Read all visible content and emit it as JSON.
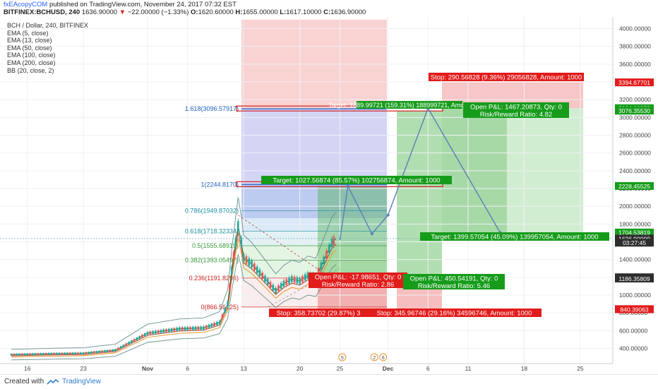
{
  "header": {
    "author": "fxEAcopyCOM",
    "published": "published on TradingView.com, November 24, 2017 07:32 EST",
    "symbol": "BITFINEX:BCHUSD, 240",
    "last": "1636.90000",
    "change": "−22.00000 (−1.33%)",
    "open_label": "O:",
    "open": "1620.60000",
    "high_label": "H:",
    "high": "1655.00000",
    "low_label": "L:",
    "low": "1617.10000",
    "close_label": "C:",
    "close": "1636.90000"
  },
  "legend": [
    "BCH / Dollar, 240, BITFINEX",
    "EMA (5, close)",
    "EMA (13, close)",
    "EMA (50, close)",
    "EMA (100, close)",
    "EMA (200, close)",
    "BB (20, close, 2)"
  ],
  "footer": {
    "created_with": "Created with",
    "brand": "TradingView"
  },
  "colors": {
    "up": "#26a69a",
    "down": "#ef5350",
    "red_label": "#e21b1b",
    "green_label": "#169c1b",
    "fib_blue": "#1e5fc0",
    "fib_green": "#3a9a3a",
    "fib_red": "#cc2222",
    "path": "#5b7fb8"
  },
  "chart_data": {
    "type": "candlestick",
    "title": "BCH / Dollar, 240, BITFINEX",
    "ylim": [
      300,
      4100
    ],
    "y_ticks": [
      400,
      600,
      800,
      1000,
      1200,
      1400,
      1600,
      1800,
      2000,
      2200,
      2400,
      2600,
      2800,
      3000,
      3200,
      3400,
      3600,
      3800,
      4000
    ],
    "x_ticks": [
      {
        "label": "16",
        "day": -15
      },
      {
        "label": "23",
        "day": -8
      },
      {
        "label": "Nov",
        "day": 0
      },
      {
        "label": "6",
        "day": 5
      },
      {
        "label": "13",
        "day": 12
      },
      {
        "label": "20",
        "day": 19
      },
      {
        "label": "25",
        "day": 24
      },
      {
        "label": "Dec",
        "day": 30
      },
      {
        "label": "6",
        "day": 35
      },
      {
        "label": "11",
        "day": 40
      },
      {
        "label": "18",
        "day": 47
      },
      {
        "label": "25",
        "day": 54
      }
    ],
    "price_series": [
      {
        "day": -17,
        "price": 330
      },
      {
        "day": -12,
        "price": 340
      },
      {
        "day": -8,
        "price": 345
      },
      {
        "day": -4,
        "price": 380
      },
      {
        "day": 0,
        "price": 570
      },
      {
        "day": 4,
        "price": 620
      },
      {
        "day": 7,
        "price": 630
      },
      {
        "day": 9,
        "price": 690
      },
      {
        "day": 10,
        "price": 900
      },
      {
        "day": 10.5,
        "price": 1280
      },
      {
        "day": 11,
        "price": 1600
      },
      {
        "day": 11.3,
        "price": 1780
      },
      {
        "day": 11.7,
        "price": 1600
      },
      {
        "day": 12,
        "price": 1420
      },
      {
        "day": 13,
        "price": 1350
      },
      {
        "day": 14,
        "price": 1250
      },
      {
        "day": 15,
        "price": 1150
      },
      {
        "day": 16,
        "price": 1050
      },
      {
        "day": 17,
        "price": 1130
      },
      {
        "day": 18,
        "price": 1180
      },
      {
        "day": 19,
        "price": 1160
      },
      {
        "day": 20,
        "price": 1220
      },
      {
        "day": 21,
        "price": 1200
      },
      {
        "day": 22,
        "price": 1390
      },
      {
        "day": 23,
        "price": 1590
      },
      {
        "day": 23.5,
        "price": 1636.9
      }
    ],
    "fibonacci": [
      {
        "level": "1.618",
        "value": 3096.57917,
        "label": "1.618(3096.57917)"
      },
      {
        "level": "1",
        "value": 2244.817,
        "label": "1(2244.8170)"
      },
      {
        "level": "0.786",
        "value": 1949.87032,
        "label": "0.786(1949.87032)"
      },
      {
        "level": "0.618",
        "value": 1718.32334,
        "label": "0.618(1718.32334)"
      },
      {
        "level": "0.5",
        "value": 1555.68915,
        "label": "0.5(1555.68915)"
      },
      {
        "level": "0.382",
        "value": 1393.05497,
        "label": "0.382(1393.05497)"
      },
      {
        "level": "0.236",
        "value": 1191.8296,
        "label": "0.236(1191.8296)"
      },
      {
        "level": "0",
        "value": 866.56125,
        "label": "0(866.56125)"
      }
    ],
    "price_labels": [
      {
        "text": "3394.67701",
        "value": 3394.67701,
        "color": "red"
      },
      {
        "text": "3104.10873",
        "value": 3104.10873,
        "color": "green"
      },
      {
        "text": "3076.35530",
        "value": 3076.3553,
        "color": "green"
      },
      {
        "text": "2228.45525",
        "value": 2228.45525,
        "color": "green"
      },
      {
        "text": "1704.53819",
        "value": 1704.53819,
        "color": "green"
      },
      {
        "text": "1636.90000",
        "value": 1636.9,
        "color": "dark"
      },
      {
        "text": "03:27:45",
        "value": 1590,
        "color": "dark"
      },
      {
        "text": "1200.88651",
        "value": 1200.88651,
        "color": "dark"
      },
      {
        "text": "1186.35809",
        "value": 1186.35809,
        "color": "dark"
      },
      {
        "text": "842.14949",
        "value": 842.14949,
        "color": "red"
      },
      {
        "text": "840.39063",
        "value": 840.39063,
        "color": "red"
      }
    ],
    "annotations": {
      "stop_top": "Stop: 290.56828 (9.36%) 29056828, Amount: 1000",
      "target_top": "Target: 1889.99721 (159.31%) 188999721, Amount: 1000",
      "open_pl_top": "Open P&L: 1467.20873, Qty: 0",
      "rr_top": "Risk/Reward Ratio: 4.82",
      "target_mid": "Target: 1027.56874 (85.57%) 102756874, Amount: 1000",
      "target_right": "Target: 1399.57054 (45.09%) 139957054, Amount: 1000",
      "open_pl_left": "Open P&L: -17.98651, Qty: 0",
      "rr_left": "Risk/Reward Ratio: 2.86",
      "open_pl_mid": "Open P&L: 450.54191, Qty: 0",
      "rr_mid": "Risk/Reward Ratio: 5.46",
      "stop_left": "Stop: 358.73702 (29.87%) 3",
      "stop_mid": "Stop: 345.96746 (29.16%) 34596746, Amount: 1000"
    },
    "event_markers": [
      "5",
      "2",
      "6"
    ],
    "grid": true
  }
}
